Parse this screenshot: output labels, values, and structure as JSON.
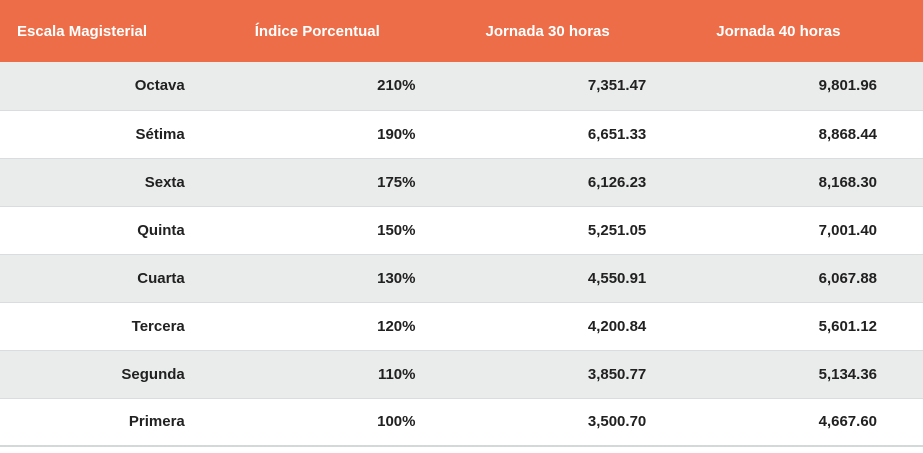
{
  "table": {
    "columns": [
      {
        "label": "Escala Magisterial"
      },
      {
        "label": "Índice Porcentual"
      },
      {
        "label": "Jornada 30 horas"
      },
      {
        "label": "Jornada 40 horas"
      }
    ],
    "rows": [
      {
        "escala": "Octava",
        "indice": "210%",
        "jornada30": "7,351.47",
        "jornada40": "9,801.96"
      },
      {
        "escala": "Sétima",
        "indice": "190%",
        "jornada30": "6,651.33",
        "jornada40": "8,868.44"
      },
      {
        "escala": "Sexta",
        "indice": "175%",
        "jornada30": "6,126.23",
        "jornada40": "8,168.30"
      },
      {
        "escala": "Quinta",
        "indice": "150%",
        "jornada30": "5,251.05",
        "jornada40": "7,001.40"
      },
      {
        "escala": "Cuarta",
        "indice": "130%",
        "jornada30": "4,550.91",
        "jornada40": "6,067.88"
      },
      {
        "escala": "Tercera",
        "indice": "120%",
        "jornada30": "4,200.84",
        "jornada40": "5,601.12"
      },
      {
        "escala": "Segunda",
        "indice": "110%",
        "jornada30": "3,850.77",
        "jornada40": "5,134.36"
      },
      {
        "escala": "Primera",
        "indice": "100%",
        "jornada30": "3,500.70",
        "jornada40": "4,667.60"
      }
    ]
  },
  "colors": {
    "header_background": "#ec6d47",
    "header_text": "#ffffff",
    "row_stripe": "#eaeceb",
    "row_white": "#ffffff",
    "body_text": "#212121",
    "row_divider": "#d9dddd",
    "table_bottom_border": "#d3d8d8"
  },
  "chart_data": {
    "type": "table",
    "title": "",
    "columns": [
      "Escala Magisterial",
      "Índice Porcentual",
      "Jornada 30 horas",
      "Jornada 40 horas"
    ],
    "rows": [
      [
        "Octava",
        "210%",
        "7,351.47",
        "9,801.96"
      ],
      [
        "Sétima",
        "190%",
        "6,651.33",
        "8,868.44"
      ],
      [
        "Sexta",
        "175%",
        "6,126.23",
        "8,168.30"
      ],
      [
        "Quinta",
        "150%",
        "5,251.05",
        "7,001.40"
      ],
      [
        "Cuarta",
        "130%",
        "4,550.91",
        "6,067.88"
      ],
      [
        "Tercera",
        "120%",
        "4,200.84",
        "5,601.12"
      ],
      [
        "Segunda",
        "110%",
        "3,850.77",
        "5,134.36"
      ],
      [
        "Primera",
        "100%",
        "3,500.70",
        "4,667.60"
      ]
    ],
    "numeric_values": {
      "indice_porcentual": [
        210,
        190,
        175,
        150,
        130,
        120,
        110,
        100
      ],
      "jornada_30_horas": [
        7351.47,
        6651.33,
        6126.23,
        5251.05,
        4550.91,
        4200.84,
        3850.77,
        3500.7
      ],
      "jornada_40_horas": [
        9801.96,
        8868.44,
        8168.3,
        7001.4,
        6067.88,
        5601.12,
        5134.36,
        4667.6
      ]
    },
    "layout_hints": {
      "striped_rows": true,
      "header_style": "solid orange, white bold text, left-aligned",
      "body_style": "bold dark text, right-aligned"
    }
  }
}
